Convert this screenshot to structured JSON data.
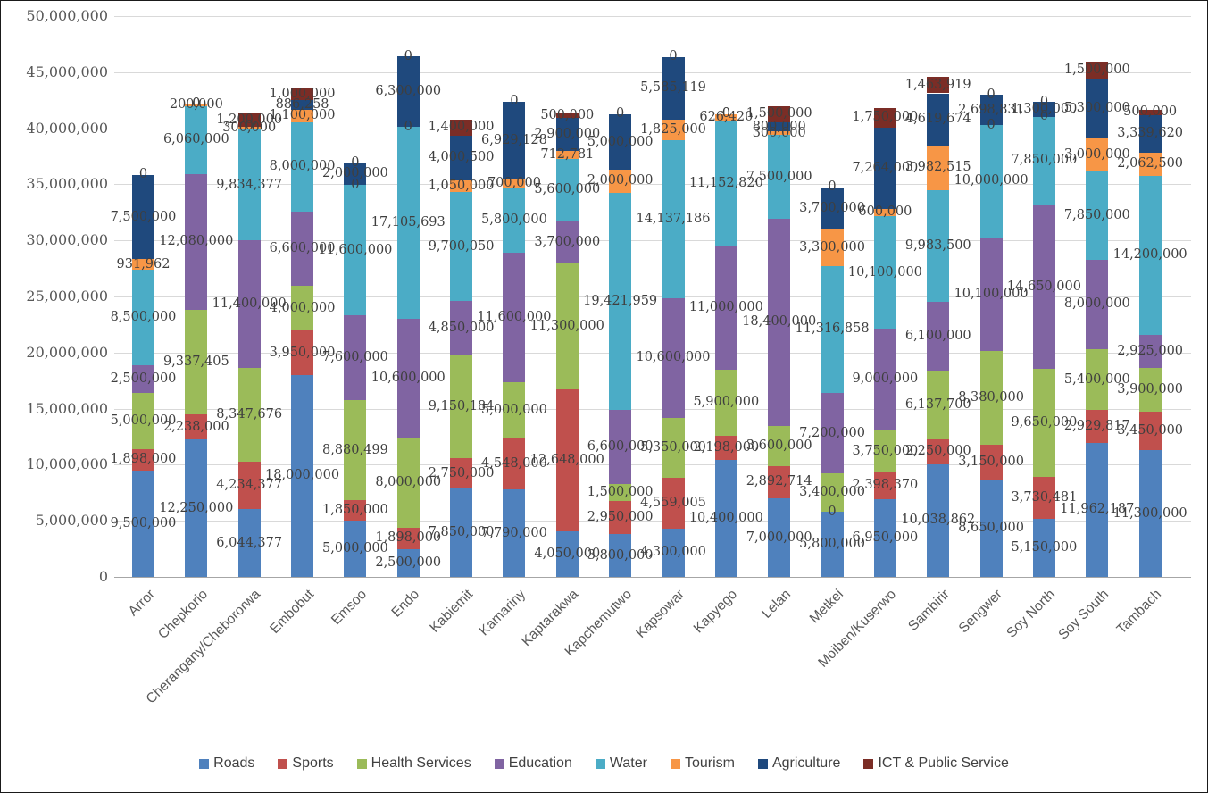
{
  "chart_data": {
    "type": "bar",
    "stacked": true,
    "title": "",
    "xlabel": "",
    "ylabel": "",
    "ylim": [
      0,
      50000000
    ],
    "ytick_step": 5000000,
    "grid": true,
    "data_labels": true,
    "legend_position": "bottom",
    "categories": [
      "Arror",
      "Chepkorio",
      "Cherangany/Chebororwa",
      "Embobut",
      "Emsoo",
      "Endo",
      "Kabiemit",
      "Kamariny",
      "Kaptarakwa",
      "Kapchemutwo",
      "Kapsowar",
      "Kapyego",
      "Lelan",
      "Metkei",
      "Moiben/Kuserwo",
      "Sambirir",
      "Sengwer",
      "Soy North",
      "Soy South",
      "Tambach"
    ],
    "series": [
      {
        "name": "Roads",
        "color": "#4F81BD",
        "values": [
          9500000,
          12250000,
          6044377,
          18000000,
          5000000,
          2500000,
          7850000,
          7790000,
          4050000,
          3800000,
          4300000,
          10400000,
          7000000,
          5800000,
          6950000,
          10038862,
          8650000,
          5150000,
          11962187,
          11300000
        ]
      },
      {
        "name": "Sports",
        "color": "#C0504D",
        "values": [
          1898000,
          2238000,
          4234377,
          3950000,
          1850000,
          1898000,
          2750000,
          4548000,
          12648000,
          2950000,
          4559005,
          2198000,
          2892714,
          0,
          2398370,
          2250000,
          3150000,
          3730481,
          2929817,
          3450000
        ]
      },
      {
        "name": "Health Services",
        "color": "#9BBB59",
        "values": [
          5000000,
          9337405,
          8347676,
          4000000,
          8880499,
          8000000,
          9150184,
          5000000,
          11300000,
          1500000,
          5350000,
          5900000,
          3600000,
          3400000,
          3750000,
          6137700,
          8380000,
          9650000,
          5400000,
          3900000
        ]
      },
      {
        "name": "Education",
        "color": "#8064A2",
        "values": [
          2500000,
          12080000,
          11400000,
          6600000,
          7600000,
          10600000,
          4850000,
          11600000,
          3700000,
          6600000,
          10600000,
          11000000,
          18400000,
          7200000,
          9000000,
          6100000,
          10100000,
          14650000,
          8000000,
          2925000
        ]
      },
      {
        "name": "Water",
        "color": "#4BACC6",
        "values": [
          8500000,
          6060000,
          9834377,
          8000000,
          11600000,
          17105693,
          9700050,
          5800000,
          5600000,
          19421959,
          14137186,
          11152820,
          7500000,
          11316858,
          10100000,
          9983500,
          10000000,
          7850000,
          7850000,
          14200000
        ]
      },
      {
        "name": "Tourism",
        "color": "#F79646",
        "values": [
          931962,
          200000,
          300000,
          1100000,
          0,
          0,
          1050000,
          700000,
          712781,
          2000000,
          1825000,
          626420,
          300000,
          3300000,
          600000,
          3982515,
          0,
          0,
          3000000,
          2062500
        ]
      },
      {
        "name": "Agriculture",
        "color": "#1F497D",
        "values": [
          7500000,
          0,
          0,
          886258,
          2000000,
          6300000,
          4000500,
          6929128,
          2900000,
          5000000,
          5585119,
          0,
          800000,
          3700000,
          7264000,
          4619674,
          2698831,
          1300000,
          5300000,
          3339620
        ]
      },
      {
        "name": "ICT & Public Service",
        "color": "#7B2D26",
        "values": [
          0,
          0,
          1200000,
          1000000,
          0,
          0,
          1400000,
          0,
          500000,
          0,
          0,
          0,
          1500000,
          0,
          1750000,
          1463919,
          0,
          0,
          1500000,
          500000
        ]
      }
    ],
    "y_tick_labels": [
      "0",
      "5,000,000",
      "10,000,000",
      "15,000,000",
      "20,000,000",
      "25,000,000",
      "30,000,000",
      "35,000,000",
      "40,000,000",
      "45,000,000",
      "50,000,000"
    ]
  }
}
